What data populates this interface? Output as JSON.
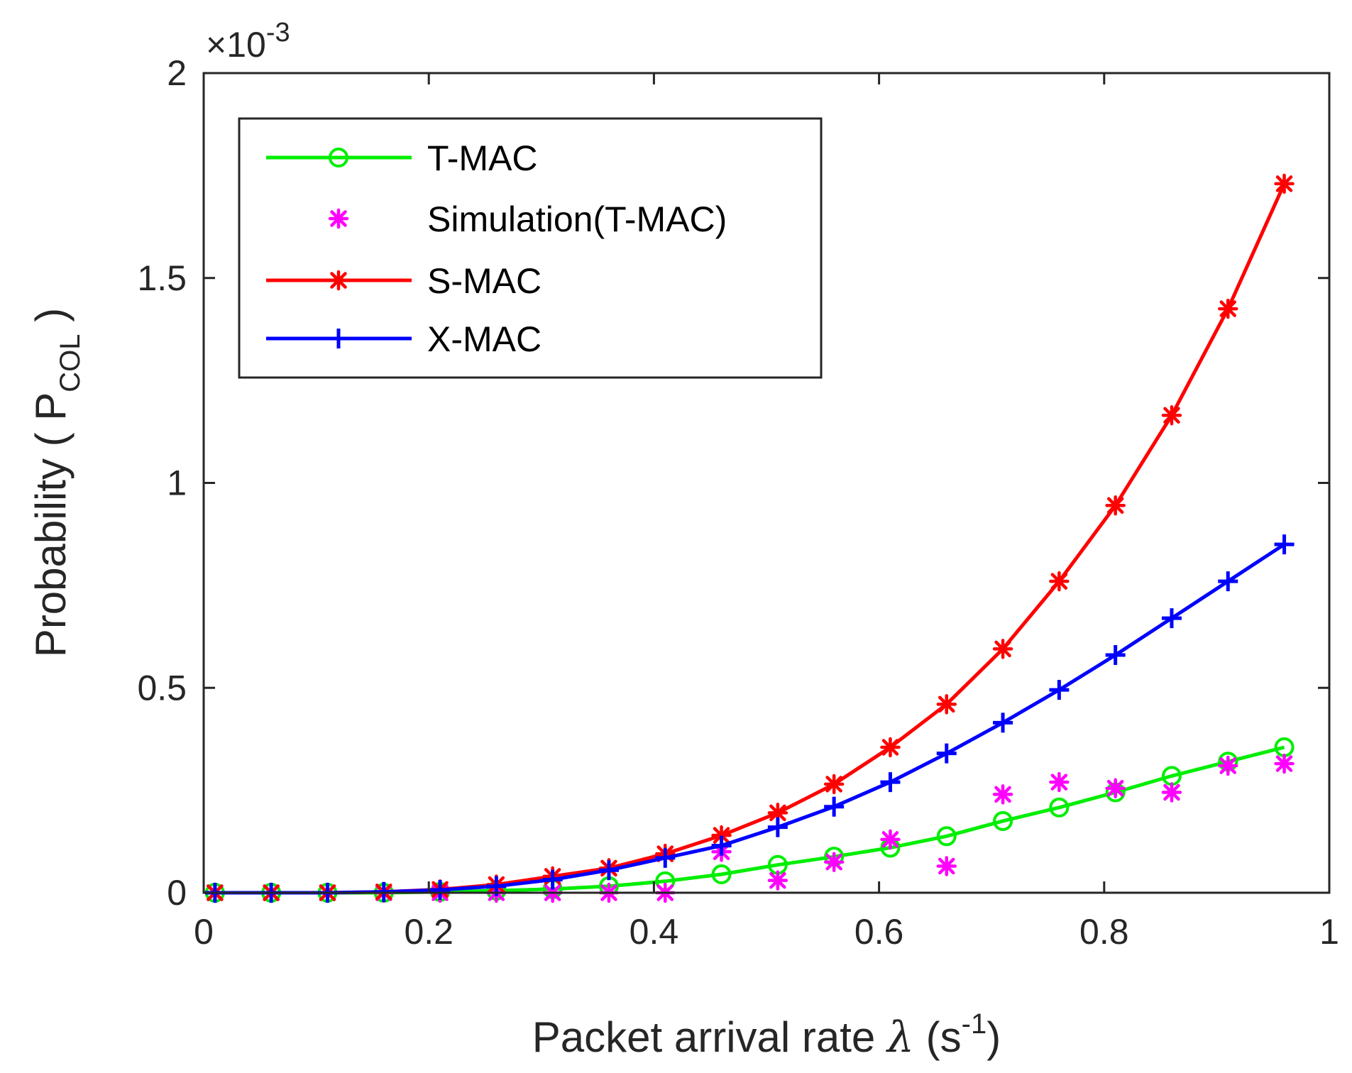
{
  "chart_data": {
    "type": "line",
    "xlabel": "Packet arrival rate λ (s⁻¹)",
    "xlabel_parts": {
      "main": "Packet arrival rate ",
      "symbol": "λ",
      "open": " (s",
      "sup": "-1",
      "close": ")"
    },
    "ylabel_parts": {
      "main": "Probability ( P",
      "sub": "COL",
      "close": " )"
    },
    "y_exponent": {
      "prefix": "×10",
      "sup": "-3"
    },
    "xlim": [
      0,
      1
    ],
    "ylim": [
      0,
      2
    ],
    "x_ticks": [
      0,
      0.2,
      0.4,
      0.6,
      0.8,
      1
    ],
    "x_tick_labels": [
      "0",
      "0.2",
      "0.4",
      "0.6",
      "0.8",
      "1"
    ],
    "y_ticks": [
      0,
      0.5,
      1,
      1.5,
      2
    ],
    "y_tick_labels": [
      "0",
      "0.5",
      "1",
      "1.5",
      "2"
    ],
    "grid": false,
    "legend_position": "top-left",
    "x": [
      0.01,
      0.06,
      0.11,
      0.16,
      0.21,
      0.26,
      0.31,
      0.36,
      0.41,
      0.46,
      0.51,
      0.56,
      0.61,
      0.66,
      0.71,
      0.76,
      0.81,
      0.86,
      0.91,
      0.96
    ],
    "series": [
      {
        "name": "T-MAC",
        "color": "#00ee00",
        "marker": "circle",
        "line": true,
        "values": [
          0,
          0,
          0,
          0,
          0.002,
          0.005,
          0.009,
          0.016,
          0.028,
          0.045,
          0.068,
          0.088,
          0.11,
          0.138,
          0.175,
          0.208,
          0.245,
          0.285,
          0.32,
          0.355
        ]
      },
      {
        "name": "Simulation(T-MAC)",
        "color": "#ff00ff",
        "marker": "asterisk",
        "line": false,
        "values": [
          0,
          0,
          0,
          0,
          0,
          0,
          0,
          0,
          0,
          0.1,
          0.03,
          0.075,
          0.13,
          0.065,
          0.24,
          0.27,
          0.255,
          0.245,
          0.31,
          0.315
        ]
      },
      {
        "name": "S-MAC",
        "color": "#ff0000",
        "marker": "asterisk",
        "line": true,
        "values": [
          0,
          0,
          0,
          0.002,
          0.008,
          0.02,
          0.04,
          0.06,
          0.095,
          0.14,
          0.195,
          0.265,
          0.355,
          0.46,
          0.595,
          0.76,
          0.945,
          1.165,
          1.425,
          1.73
        ]
      },
      {
        "name": "X-MAC",
        "color": "#0000ff",
        "marker": "plus",
        "line": true,
        "values": [
          0,
          0,
          0,
          0.002,
          0.007,
          0.016,
          0.032,
          0.055,
          0.085,
          0.115,
          0.16,
          0.21,
          0.27,
          0.34,
          0.415,
          0.495,
          0.58,
          0.67,
          0.76,
          0.85
        ]
      }
    ]
  }
}
